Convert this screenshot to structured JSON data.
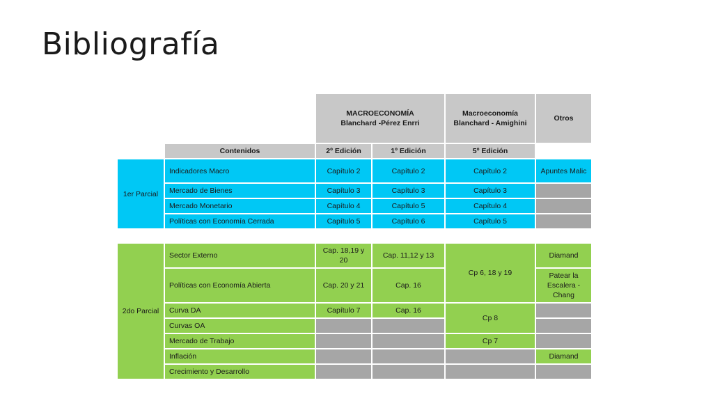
{
  "slide": {
    "title": "Bibliografía"
  },
  "headers": {
    "book1_line1": "MACROECONOMÍA",
    "book1_line2": "Blanchard -Pérez Enrri",
    "book2_line1": "Macroeconomía",
    "book2_line2": "Blanchard - Amighini",
    "otros": "Otros",
    "contenidos": "Contenidos",
    "ed2": "2º Edición",
    "ed1": "1º Edición",
    "ed5": "5º Edición"
  },
  "parcial1": {
    "label": "1er Parcial",
    "rows": [
      {
        "topic": "Indicadores Macro",
        "c1": "Capítulo 2",
        "c2": "Capítulo 2",
        "c3": "Capítulo 2",
        "otros": "Apuntes Malic"
      },
      {
        "topic": "Mercado de Bienes",
        "c1": "Capítulo 3",
        "c2": "Capítulo 3",
        "c3": "Capítulo 3",
        "otros": ""
      },
      {
        "topic": "Mercado Monetario",
        "c1": "Capítulo 4",
        "c2": "Capítulo 5",
        "c3": "Capítulo 4",
        "otros": ""
      },
      {
        "topic": "Políticas con Economía Cerrada",
        "c1": "Capítulo 5",
        "c2": "Capítulo 6",
        "c3": "Capítulo 5",
        "otros": ""
      }
    ]
  },
  "parcial2": {
    "label": "2do Parcial",
    "rows": [
      {
        "topic": "Sector Externo",
        "c1": "Cap. 18,19 y 20",
        "c2": "Cap. 11,12 y 13",
        "c3": "Cp 6, 18 y 19",
        "otros": "Diamand"
      },
      {
        "topic": "Políticas con Economía Abierta",
        "c1": "Cap. 20 y 21",
        "c2": "Cap. 16",
        "otros": "Patear la Escalera - Chang"
      },
      {
        "topic": "Curva DA",
        "c1": "Capítulo 7",
        "c2": "Cap. 16",
        "c3": "Cp 8",
        "otros": ""
      },
      {
        "topic": "Curvas OA",
        "c1": "",
        "c2": "",
        "otros": ""
      },
      {
        "topic": "Mercado de Trabajo",
        "c1": "",
        "c2": "",
        "c3": "Cp 7",
        "otros": ""
      },
      {
        "topic": "Inflación",
        "c1": "",
        "c2": "",
        "c3": "",
        "otros": "Diamand"
      },
      {
        "topic": "Crecimiento y Desarrollo",
        "c1": "",
        "c2": "",
        "c3": "",
        "otros": ""
      }
    ]
  },
  "colors": {
    "primer_parcial": "#00c8f5",
    "segundo_parcial": "#92d050",
    "header": "#c8c8c8",
    "empty_cell": "#a6a6a6"
  }
}
